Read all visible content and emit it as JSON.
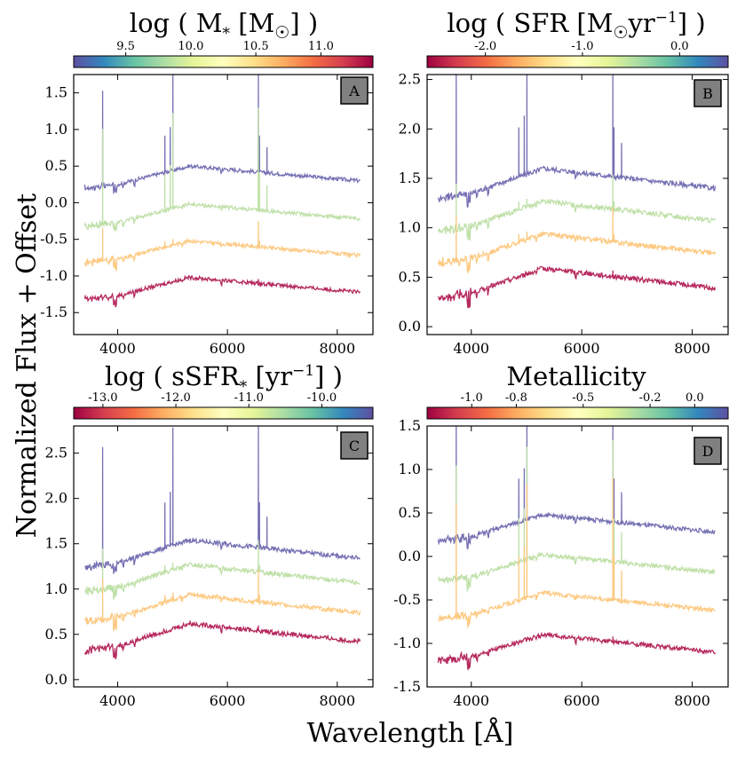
{
  "figure": {
    "ylabel": "Normalized Flux + Offset",
    "xlabel": "Wavelength [Å]",
    "colormap": [
      "#5e4fa2",
      "#3288bd",
      "#66c2a5",
      "#abdda4",
      "#e6f598",
      "#ffffbf",
      "#fee08b",
      "#fdae61",
      "#f46d43",
      "#d53e4f",
      "#9e0142"
    ]
  },
  "colorbar_ticks": {
    "A": [
      "9.5",
      "10.0",
      "10.5",
      "11.0"
    ],
    "B": [
      "-2.0",
      "-1.0",
      "0.0"
    ],
    "C": [
      "-13.0",
      "-12.0",
      "-11.0",
      "-10.0"
    ],
    "D": [
      "-1.0",
      "-0.8",
      "-0.5",
      "-0.2",
      "0.0"
    ]
  },
  "xticks": [
    "4000",
    "6000",
    "8000"
  ],
  "yticks": {
    "A": [
      "1.5",
      "1.0",
      "0.5",
      "0.0",
      "-0.5",
      "-1.0",
      "-1.5"
    ],
    "B": [
      "2.5",
      "2.0",
      "1.5",
      "1.0",
      "0.5",
      "0.0"
    ],
    "C": [
      "2.5",
      "2.0",
      "1.5",
      "1.0",
      "0.5",
      "0.0"
    ],
    "D": [
      "1.5",
      "1.0",
      "0.5",
      "0.0",
      "-0.5",
      "-1.0",
      "-1.5"
    ]
  },
  "chart_data": [
    {
      "type": "line",
      "panel": "A",
      "title": "log ( M* [M☉] )",
      "colorbar": {
        "range": [
          9.1,
          11.4
        ],
        "reversed": false
      },
      "xlim": [
        3200,
        8650
      ],
      "ylim": [
        -1.8,
        1.75
      ],
      "series": [
        {
          "name": "spectrum 1",
          "color": "#7570b3",
          "offset": 0.4,
          "lines": "strong"
        },
        {
          "name": "spectrum 2",
          "color": "#bfe0a8",
          "offset": -0.12,
          "lines": "strong"
        },
        {
          "name": "spectrum 3",
          "color": "#fdc981",
          "offset": -0.62,
          "lines": "weak"
        },
        {
          "name": "spectrum 4",
          "color": "#b5295d",
          "offset": -1.12,
          "lines": "absorption"
        }
      ]
    },
    {
      "type": "line",
      "panel": "B",
      "title": "log ( SFR [M☉yr⁻¹] )",
      "colorbar": {
        "range": [
          -2.6,
          0.5
        ],
        "reversed": true
      },
      "xlim": [
        3200,
        8650
      ],
      "ylim": [
        -0.08,
        2.55
      ],
      "series": [
        {
          "name": "spectrum 1",
          "color": "#7570b3",
          "offset": 1.5,
          "lines": "strong"
        },
        {
          "name": "spectrum 2",
          "color": "#bfe0a8",
          "offset": 1.17,
          "lines": "weak"
        },
        {
          "name": "spectrum 3",
          "color": "#fdc981",
          "offset": 0.84,
          "lines": "weak"
        },
        {
          "name": "spectrum 4",
          "color": "#b5295d",
          "offset": 0.49,
          "lines": "absorption"
        }
      ]
    },
    {
      "type": "line",
      "panel": "C",
      "title": "log ( sSFR* [yr⁻¹] )",
      "colorbar": {
        "range": [
          -13.4,
          -9.3
        ],
        "reversed": true
      },
      "xlim": [
        3200,
        8650
      ],
      "ylim": [
        -0.08,
        2.8
      ],
      "series": [
        {
          "name": "spectrum 1",
          "color": "#7570b3",
          "offset": 1.44,
          "lines": "strong"
        },
        {
          "name": "spectrum 2",
          "color": "#bfe0a8",
          "offset": 1.17,
          "lines": "weak"
        },
        {
          "name": "spectrum 3",
          "color": "#fdc981",
          "offset": 0.84,
          "lines": "weak"
        },
        {
          "name": "spectrum 4",
          "color": "#b5295d",
          "offset": 0.52,
          "lines": "absorption"
        }
      ]
    },
    {
      "type": "line",
      "panel": "D",
      "title": "Metallicity",
      "colorbar": {
        "range": [
          -1.2,
          0.15
        ],
        "reversed": true
      },
      "xlim": [
        3200,
        8650
      ],
      "ylim": [
        -1.5,
        1.5
      ],
      "series": [
        {
          "name": "spectrum 1",
          "color": "#7570b3",
          "offset": 0.38,
          "lines": "strong"
        },
        {
          "name": "spectrum 2",
          "color": "#bfe0a8",
          "offset": -0.08,
          "lines": "strong"
        },
        {
          "name": "spectrum 3",
          "color": "#fdc981",
          "offset": -0.52,
          "lines": "strong"
        },
        {
          "name": "spectrum 4",
          "color": "#b5295d",
          "offset": -1.0,
          "lines": "absorption"
        }
      ]
    }
  ],
  "panel_labels": {
    "A": "A",
    "B": "B",
    "C": "C",
    "D": "D"
  }
}
